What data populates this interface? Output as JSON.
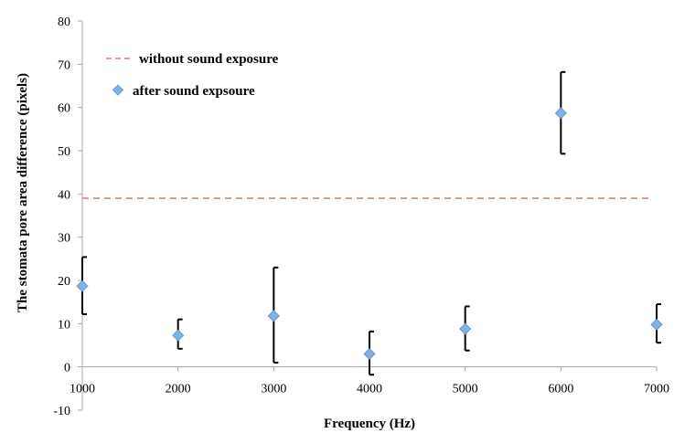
{
  "chart_data": {
    "type": "scatter",
    "title": "",
    "xlabel": "Frequency (Hz)",
    "ylabel": "The stomata pore area difference  (pixels)",
    "xlim": [
      1000,
      7000
    ],
    "ylim": [
      -10,
      80
    ],
    "x_ticks": [
      1000,
      2000,
      3000,
      4000,
      5000,
      6000,
      7000
    ],
    "y_ticks": [
      -10,
      0,
      10,
      20,
      30,
      40,
      50,
      60,
      70,
      80
    ],
    "grid": false,
    "legend_placement": "top-left",
    "reference_line": {
      "name": "without sound exposure",
      "value": 39,
      "style": "dashed",
      "color": "#e07b73"
    },
    "series": [
      {
        "name": "after sound expsoure",
        "marker": "diamond",
        "color": "#7fb2e5",
        "points": [
          {
            "x": 1000,
            "y": 18.7,
            "err_low": 12.2,
            "err_high": 25.4
          },
          {
            "x": 2000,
            "y": 7.3,
            "err_low": 4.2,
            "err_high": 11.0
          },
          {
            "x": 3000,
            "y": 11.8,
            "err_low": 1.0,
            "err_high": 23.0
          },
          {
            "x": 4000,
            "y": 3.0,
            "err_low": -1.8,
            "err_high": 8.2
          },
          {
            "x": 5000,
            "y": 8.8,
            "err_low": 3.8,
            "err_high": 14.0
          },
          {
            "x": 6000,
            "y": 58.7,
            "err_low": 49.3,
            "err_high": 68.2
          },
          {
            "x": 7000,
            "y": 9.8,
            "err_low": 5.6,
            "err_high": 14.5
          }
        ]
      }
    ]
  }
}
